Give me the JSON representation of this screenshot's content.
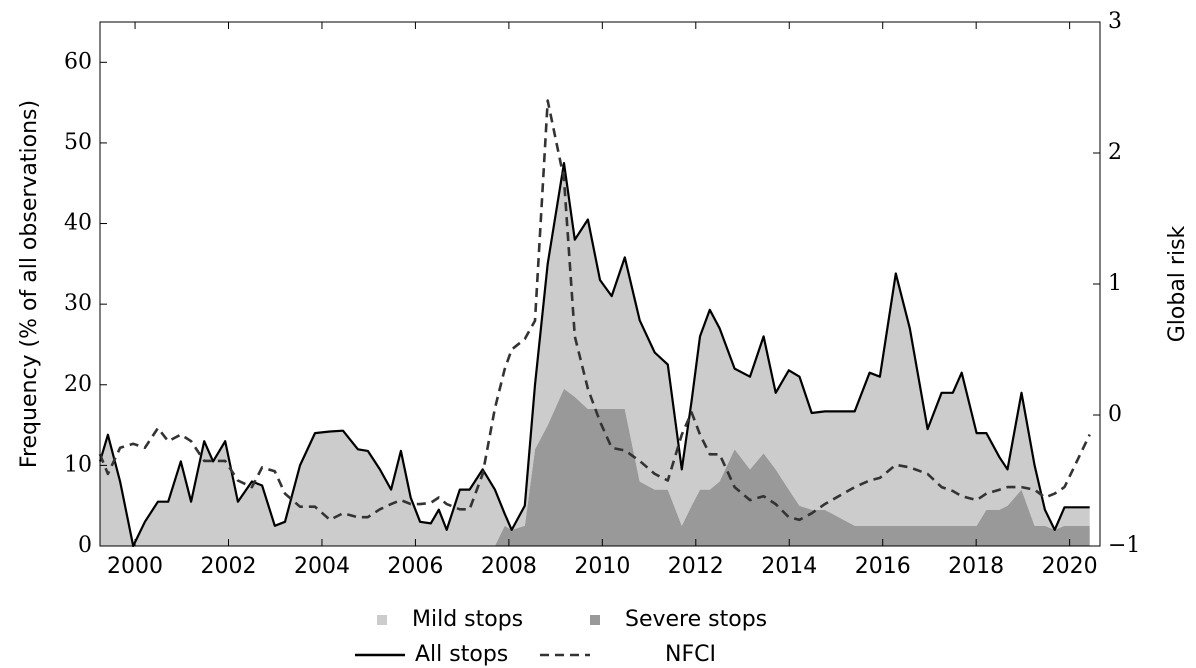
{
  "chart_data": {
    "type": "area-line",
    "y_label": "Frequency (% of all observations)",
    "y2_label": "Global risk",
    "xlim": [
      1999.25,
      2020.65
    ],
    "xticks": [
      2000,
      2002,
      2004,
      2006,
      2008,
      2010,
      2012,
      2014,
      2016,
      2018,
      2020
    ],
    "ylim": [
      0,
      65
    ],
    "yticks": [
      0,
      10,
      20,
      30,
      40,
      50,
      60
    ],
    "y2lim": [
      -1,
      3
    ],
    "y2ticks": [
      {
        "value": -1,
        "label": "−1"
      },
      0,
      1,
      2,
      3
    ],
    "grid": false,
    "legend": "bottom",
    "x": [
      1999.25,
      1999.42,
      1999.68,
      1999.96,
      2000.21,
      2000.49,
      2000.71,
      2000.98,
      2001.2,
      2001.48,
      2001.67,
      2001.93,
      2002.2,
      2002.5,
      2002.72,
      2002.99,
      2003.21,
      2003.53,
      2003.85,
      2004.17,
      2004.45,
      2004.77,
      2004.98,
      2005.24,
      2005.48,
      2005.69,
      2005.9,
      2006.1,
      2006.33,
      2006.5,
      2006.67,
      2006.95,
      2007.16,
      2007.44,
      2007.7,
      2007.91,
      2008.06,
      2008.34,
      2008.56,
      2008.83,
      2009.18,
      2009.41,
      2009.69,
      2009.95,
      2010.2,
      2010.48,
      2010.8,
      2011.12,
      2011.4,
      2011.7,
      2011.91,
      2012.09,
      2012.3,
      2012.51,
      2012.83,
      2013.16,
      2013.45,
      2013.71,
      2013.99,
      2014.22,
      2014.48,
      2014.76,
      2015.4,
      2015.72,
      2015.94,
      2016.28,
      2016.58,
      2016.96,
      2017.26,
      2017.5,
      2017.69,
      2018.01,
      2018.22,
      2018.5,
      2018.67,
      2018.97,
      2019.25,
      2019.47,
      2019.68,
      2019.89,
      2020.43
    ],
    "series": [
      {
        "name": "Mild stops",
        "kind": "area",
        "color": "#cccccc",
        "values": [
          10.5,
          13.8,
          8,
          0,
          3,
          5.5,
          5.5,
          10.5,
          5.5,
          13,
          10.5,
          13,
          5.5,
          8,
          7.5,
          2.5,
          3,
          10,
          14,
          14.2,
          14.3,
          12,
          11.8,
          9.5,
          7,
          11.8,
          6,
          3,
          2.8,
          4.5,
          2,
          7,
          7,
          9.5,
          7,
          1.5,
          0,
          2.5,
          8,
          20,
          28,
          19.5,
          23.5,
          16,
          14,
          18.8,
          20,
          17,
          15.5,
          7,
          13,
          19,
          22.3,
          19,
          10,
          11.5,
          14.5,
          9.5,
          14.8,
          16,
          12,
          12.2,
          14.2,
          19,
          18.5,
          31.3,
          24.5,
          12,
          16.5,
          16.5,
          19,
          11.5,
          9.5,
          6.5,
          4.5,
          12,
          7.5,
          2,
          0,
          2.3,
          2.3
        ]
      },
      {
        "name": "Severe stops",
        "kind": "area",
        "color": "#999999",
        "values": [
          0,
          0,
          0,
          0,
          0,
          0,
          0,
          0,
          0,
          0,
          0,
          0,
          0,
          0,
          0,
          0,
          0,
          0,
          0,
          0,
          0,
          0,
          0,
          0,
          0,
          0,
          0,
          0,
          0,
          0,
          0,
          0,
          0,
          0,
          0,
          2.5,
          2,
          2.5,
          12,
          15,
          19.5,
          18.5,
          17,
          17,
          17,
          17,
          8,
          7,
          7,
          2.5,
          5,
          7,
          7,
          8,
          12,
          9.5,
          11.5,
          9.5,
          7,
          5,
          4.5,
          4.5,
          2.5,
          2.5,
          2.5,
          2.5,
          2.5,
          2.5,
          2.5,
          2.5,
          2.5,
          2.5,
          4.5,
          4.5,
          5,
          7,
          2.5,
          2.5,
          2,
          2.5,
          2.5
        ]
      },
      {
        "name": "All stops",
        "kind": "line",
        "color": "#000000",
        "dash": "solid",
        "values": [
          10.5,
          13.8,
          8,
          0,
          3,
          5.5,
          5.5,
          10.5,
          5.5,
          13,
          10.5,
          13,
          5.5,
          8,
          7.5,
          2.5,
          3,
          10,
          14,
          14.2,
          14.3,
          12,
          11.8,
          9.5,
          7,
          11.8,
          6,
          3,
          2.8,
          4.5,
          2,
          7,
          7,
          9.5,
          7,
          4,
          2,
          5,
          20,
          35,
          47.5,
          38,
          40.5,
          33,
          31,
          35.8,
          28,
          24,
          22.5,
          9.5,
          18,
          26,
          29.3,
          27,
          22,
          21,
          26,
          19,
          21.8,
          21,
          16.5,
          16.7,
          16.7,
          21.5,
          21,
          33.8,
          27,
          14.5,
          19,
          19,
          21.5,
          14,
          14,
          11,
          9.5,
          19,
          10,
          4.5,
          2,
          4.8,
          4.8
        ]
      },
      {
        "name": "NFCI",
        "kind": "line",
        "axis": "y2",
        "color": "#333333",
        "dash": "dashed",
        "values": [
          -0.3,
          -0.45,
          -0.25,
          -0.22,
          -0.25,
          -0.1,
          -0.2,
          -0.15,
          -0.2,
          -0.35,
          -0.35,
          -0.35,
          -0.5,
          -0.55,
          -0.4,
          -0.43,
          -0.6,
          -0.7,
          -0.7,
          -0.8,
          -0.75,
          -0.78,
          -0.78,
          -0.72,
          -0.68,
          -0.65,
          -0.68,
          -0.68,
          -0.67,
          -0.63,
          -0.68,
          -0.72,
          -0.72,
          -0.45,
          0.05,
          0.35,
          0.5,
          0.58,
          0.72,
          2.4,
          1.8,
          0.6,
          0.2,
          -0.05,
          -0.25,
          -0.27,
          -0.35,
          -0.45,
          -0.5,
          -0.15,
          0.02,
          -0.15,
          -0.3,
          -0.3,
          -0.55,
          -0.65,
          -0.62,
          -0.68,
          -0.78,
          -0.8,
          -0.75,
          -0.68,
          -0.55,
          -0.5,
          -0.48,
          -0.38,
          -0.4,
          -0.45,
          -0.55,
          -0.58,
          -0.62,
          -0.65,
          -0.6,
          -0.57,
          -0.55,
          -0.55,
          -0.57,
          -0.63,
          -0.6,
          -0.55,
          -0.15
        ]
      }
    ]
  }
}
